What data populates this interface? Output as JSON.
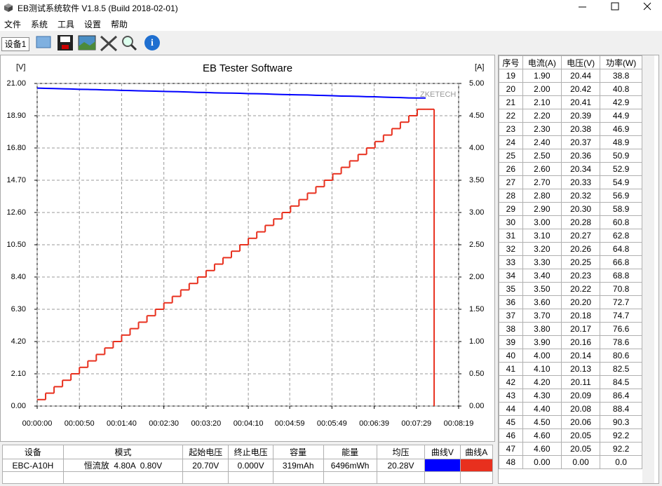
{
  "window": {
    "title": "EB测试系统软件 V1.8.5 (Build 2018-02-01)"
  },
  "menu": [
    "文件",
    "系统",
    "工具",
    "设置",
    "帮助"
  ],
  "tab": "设备1",
  "chart_data": {
    "type": "line",
    "title": "EB Tester Software",
    "y_label": "[V]",
    "y2_label": "[A]",
    "watermark": "ZKETECH",
    "x": [
      0,
      10,
      20,
      30,
      40,
      50,
      60,
      70,
      80,
      90,
      100,
      110,
      120,
      130,
      140,
      150,
      160,
      170,
      180,
      190,
      200,
      210,
      220,
      230,
      240,
      250,
      260,
      270,
      280,
      290,
      300,
      310,
      320,
      330,
      340,
      350,
      360,
      370,
      380,
      390,
      400,
      410,
      420,
      430,
      440,
      450,
      460,
      470
    ],
    "xlim": [
      0,
      499
    ],
    "xticks": [
      {
        "value": 0,
        "label": "00:00:00"
      },
      {
        "value": 50,
        "label": "00:00:50"
      },
      {
        "value": 100,
        "label": "00:01:40"
      },
      {
        "value": 150,
        "label": "00:02:30"
      },
      {
        "value": 200,
        "label": "00:03:20"
      },
      {
        "value": 250,
        "label": "00:04:10"
      },
      {
        "value": 299,
        "label": "00:04:59"
      },
      {
        "value": 349,
        "label": "00:05:49"
      },
      {
        "value": 399,
        "label": "00:06:39"
      },
      {
        "value": 449,
        "label": "00:07:29"
      },
      {
        "value": 499,
        "label": "00:08:19"
      }
    ],
    "ylim": [
      0,
      21
    ],
    "yticks": [
      {
        "value": 0,
        "label": "0.00"
      },
      {
        "value": 2.1,
        "label": "2.10"
      },
      {
        "value": 4.2,
        "label": "4.20"
      },
      {
        "value": 6.3,
        "label": "6.30"
      },
      {
        "value": 8.4,
        "label": "8.40"
      },
      {
        "value": 10.5,
        "label": "10.50"
      },
      {
        "value": 12.6,
        "label": "12.60"
      },
      {
        "value": 14.7,
        "label": "14.70"
      },
      {
        "value": 16.8,
        "label": "16.80"
      },
      {
        "value": 18.9,
        "label": "18.90"
      },
      {
        "value": 21,
        "label": "21.00"
      }
    ],
    "y2lim": [
      0,
      5
    ],
    "y2ticks": [
      {
        "value": 0,
        "label": "0.00"
      },
      {
        "value": 0.5,
        "label": "0.50"
      },
      {
        "value": 1,
        "label": "1.00"
      },
      {
        "value": 1.5,
        "label": "1.50"
      },
      {
        "value": 2,
        "label": "2.00"
      },
      {
        "value": 2.5,
        "label": "2.50"
      },
      {
        "value": 3,
        "label": "3.00"
      },
      {
        "value": 3.5,
        "label": "3.50"
      },
      {
        "value": 4,
        "label": "4.00"
      },
      {
        "value": 4.5,
        "label": "4.50"
      },
      {
        "value": 5,
        "label": "5.00"
      }
    ],
    "grid": true,
    "series": [
      {
        "name": "曲线V",
        "color": "#0000ff",
        "axis": "y",
        "values": [
          20.7,
          20.68,
          20.67,
          20.65,
          20.64,
          20.62,
          20.61,
          20.6,
          20.58,
          20.57,
          20.55,
          20.54,
          20.52,
          20.51,
          20.5,
          20.48,
          20.47,
          20.46,
          20.44,
          20.42,
          20.41,
          20.39,
          20.38,
          20.37,
          20.36,
          20.34,
          20.33,
          20.32,
          20.3,
          20.28,
          20.27,
          20.26,
          20.25,
          20.23,
          20.22,
          20.2,
          20.18,
          20.17,
          20.16,
          20.14,
          20.13,
          20.11,
          20.09,
          20.08,
          20.06,
          20.05,
          20.05,
          null
        ]
      },
      {
        "name": "曲线A",
        "color": "#e8301e",
        "axis": "y2",
        "step": true,
        "values": [
          0.1,
          0.2,
          0.3,
          0.4,
          0.5,
          0.6,
          0.7,
          0.8,
          0.9,
          1.0,
          1.1,
          1.2,
          1.3,
          1.4,
          1.5,
          1.6,
          1.7,
          1.8,
          1.9,
          2.0,
          2.1,
          2.2,
          2.3,
          2.4,
          2.5,
          2.6,
          2.7,
          2.8,
          2.9,
          3.0,
          3.1,
          3.2,
          3.3,
          3.4,
          3.5,
          3.6,
          3.7,
          3.8,
          3.9,
          4.0,
          4.1,
          4.2,
          4.3,
          4.4,
          4.5,
          4.6,
          4.6,
          0
        ]
      }
    ]
  },
  "log_table": {
    "headers": [
      "序号",
      "电流(A)",
      "电压(V)",
      "功率(W)"
    ],
    "rows": [
      [
        "19",
        "1.90",
        "20.44",
        "38.8"
      ],
      [
        "20",
        "2.00",
        "20.42",
        "40.8"
      ],
      [
        "21",
        "2.10",
        "20.41",
        "42.9"
      ],
      [
        "22",
        "2.20",
        "20.39",
        "44.9"
      ],
      [
        "23",
        "2.30",
        "20.38",
        "46.9"
      ],
      [
        "24",
        "2.40",
        "20.37",
        "48.9"
      ],
      [
        "25",
        "2.50",
        "20.36",
        "50.9"
      ],
      [
        "26",
        "2.60",
        "20.34",
        "52.9"
      ],
      [
        "27",
        "2.70",
        "20.33",
        "54.9"
      ],
      [
        "28",
        "2.80",
        "20.32",
        "56.9"
      ],
      [
        "29",
        "2.90",
        "20.30",
        "58.9"
      ],
      [
        "30",
        "3.00",
        "20.28",
        "60.8"
      ],
      [
        "31",
        "3.10",
        "20.27",
        "62.8"
      ],
      [
        "32",
        "3.20",
        "20.26",
        "64.8"
      ],
      [
        "33",
        "3.30",
        "20.25",
        "66.8"
      ],
      [
        "34",
        "3.40",
        "20.23",
        "68.8"
      ],
      [
        "35",
        "3.50",
        "20.22",
        "70.8"
      ],
      [
        "36",
        "3.60",
        "20.20",
        "72.7"
      ],
      [
        "37",
        "3.70",
        "20.18",
        "74.7"
      ],
      [
        "38",
        "3.80",
        "20.17",
        "76.6"
      ],
      [
        "39",
        "3.90",
        "20.16",
        "78.6"
      ],
      [
        "40",
        "4.00",
        "20.14",
        "80.6"
      ],
      [
        "41",
        "4.10",
        "20.13",
        "82.5"
      ],
      [
        "42",
        "4.20",
        "20.11",
        "84.5"
      ],
      [
        "43",
        "4.30",
        "20.09",
        "86.4"
      ],
      [
        "44",
        "4.40",
        "20.08",
        "88.4"
      ],
      [
        "45",
        "4.50",
        "20.06",
        "90.3"
      ],
      [
        "46",
        "4.60",
        "20.05",
        "92.2"
      ],
      [
        "47",
        "4.60",
        "20.05",
        "92.2"
      ],
      [
        "48",
        "0.00",
        "0.00",
        "0.0"
      ]
    ]
  },
  "summary_table": {
    "headers": [
      "设备",
      "模式",
      "起始电压",
      "终止电压",
      "容量",
      "能量",
      "均压",
      "曲线V",
      "曲线A"
    ],
    "rows": [
      [
        "EBC-A10H",
        "恒流放  4.80A  0.80V",
        "20.70V",
        "0.000V",
        "319mAh",
        "6496mWh",
        "20.28V"
      ]
    ]
  }
}
